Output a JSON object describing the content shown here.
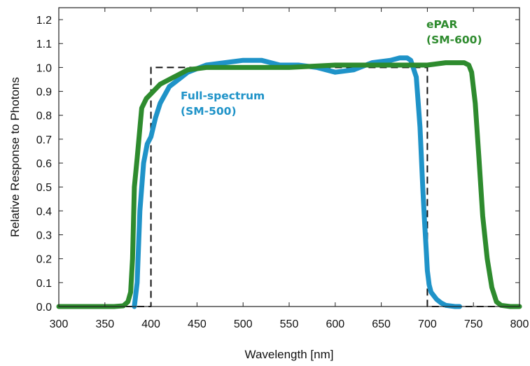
{
  "chart_data": {
    "type": "line",
    "title": "",
    "xlabel": "Wavelength [nm]",
    "ylabel": "Relative Response to Photons",
    "xlim": [
      300,
      800
    ],
    "ylim": [
      0.0,
      1.25
    ],
    "xticks": [
      300,
      350,
      400,
      450,
      500,
      550,
      600,
      650,
      700,
      750,
      800
    ],
    "yticks": [
      0.0,
      0.1,
      0.2,
      0.3,
      0.4,
      0.5,
      0.6,
      0.7,
      0.8,
      0.9,
      1.0,
      1.1,
      1.2
    ],
    "xtick_labels": [
      "300",
      "350",
      "400",
      "450",
      "500",
      "550",
      "600",
      "650",
      "700",
      "750",
      "800"
    ],
    "ytick_labels": [
      "0.0",
      "0.1",
      "0.2",
      "0.3",
      "0.4",
      "0.5",
      "0.6",
      "0.7",
      "0.8",
      "0.9",
      "1.0",
      "1.1",
      "1.2"
    ],
    "grid": false,
    "legend": "none",
    "series": [
      {
        "label_lines": [
          "ePAR",
          "(SM-600)"
        ],
        "color": "#2e8b2e",
        "style": "solid",
        "x": [
          300,
          320,
          340,
          360,
          370,
          375,
          378,
          380,
          382,
          385,
          390,
          395,
          400,
          410,
          420,
          440,
          460,
          500,
          550,
          600,
          650,
          700,
          720,
          740,
          745,
          748,
          752,
          756,
          760,
          765,
          770,
          775,
          780,
          790,
          800
        ],
        "y": [
          0.0,
          0.0,
          0.0,
          0.0,
          0.003,
          0.02,
          0.06,
          0.2,
          0.5,
          0.62,
          0.83,
          0.87,
          0.89,
          0.93,
          0.95,
          0.99,
          1.0,
          1.0,
          1.0,
          1.01,
          1.01,
          1.01,
          1.02,
          1.02,
          1.01,
          0.98,
          0.85,
          0.62,
          0.38,
          0.2,
          0.08,
          0.02,
          0.005,
          0.0,
          0.0
        ]
      },
      {
        "label_lines": [
          "Full-spectrum",
          "(SM-500)"
        ],
        "color": "#1f93c8",
        "style": "solid",
        "x": [
          382,
          385,
          388,
          392,
          396,
          400,
          405,
          410,
          420,
          430,
          440,
          460,
          480,
          500,
          520,
          540,
          560,
          580,
          600,
          620,
          640,
          660,
          670,
          678,
          682,
          688,
          692,
          695,
          697,
          699,
          700,
          702,
          704,
          710,
          715,
          720,
          730,
          735
        ],
        "y": [
          0.0,
          0.1,
          0.4,
          0.6,
          0.68,
          0.71,
          0.79,
          0.85,
          0.92,
          0.95,
          0.98,
          1.01,
          1.02,
          1.03,
          1.03,
          1.01,
          1.01,
          1.0,
          0.98,
          0.99,
          1.02,
          1.03,
          1.04,
          1.04,
          1.03,
          0.96,
          0.75,
          0.5,
          0.35,
          0.22,
          0.15,
          0.09,
          0.06,
          0.03,
          0.015,
          0.005,
          0.0,
          0.0
        ]
      },
      {
        "label_lines": [],
        "color": "#111111",
        "style": "dashed",
        "x": [
          300,
          400,
          400,
          700,
          700,
          800
        ],
        "y": [
          0.0,
          0.0,
          1.0,
          1.0,
          0.0,
          0.0
        ]
      }
    ]
  }
}
